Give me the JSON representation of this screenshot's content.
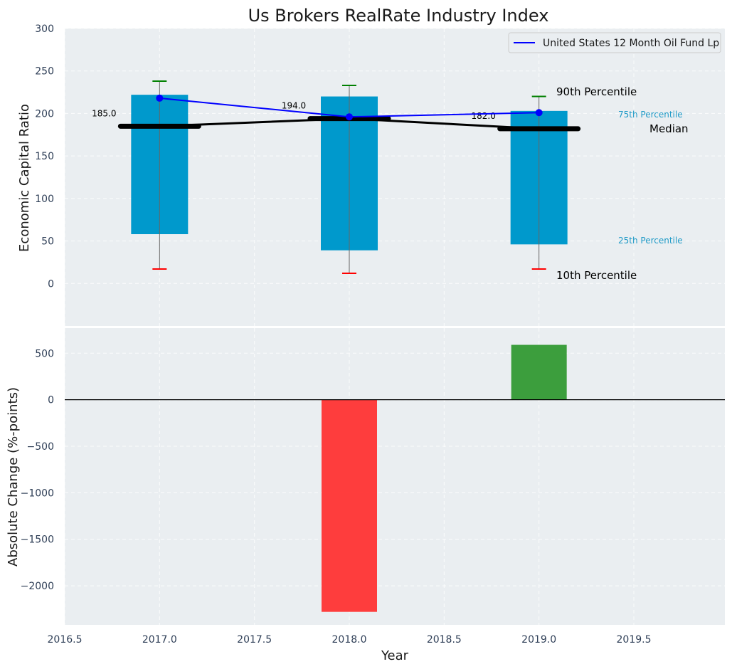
{
  "chart_data": [
    {
      "type": "bar",
      "title": "Us Brokers RealRate Industry Index",
      "ylabel": "Economic Capital Ratio",
      "ylim": [
        -50,
        300
      ],
      "yticks": [
        0,
        50,
        100,
        150,
        200,
        250,
        300
      ],
      "grid": true,
      "legend_position": "top-right",
      "years": [
        2017.0,
        2018.0,
        2019.0
      ],
      "percentile_10": [
        17,
        12,
        17
      ],
      "percentile_25": [
        58,
        39,
        46
      ],
      "percentile_75": [
        222,
        220,
        203
      ],
      "percentile_90": [
        238,
        233,
        220
      ],
      "median": [
        185,
        194,
        182
      ],
      "median_labels": [
        "185.0",
        "194.0",
        "182.0"
      ],
      "series": [
        {
          "name": "United States 12 Month Oil Fund Lp",
          "values": [
            218,
            196,
            201
          ],
          "color": "#0000ff"
        }
      ],
      "annotations": {
        "p90": "90th Percentile",
        "p75": "75th Percentile",
        "median": "Median",
        "p25": "25th Percentile",
        "p10": "10th Percentile"
      },
      "colors": {
        "box": "#0099cc",
        "p90_cap": "#008000",
        "p10_cap": "#ff0000",
        "median": "#000000",
        "annot_small": "#1f9ac7"
      }
    },
    {
      "type": "bar",
      "ylabel": "Absolute Change (%-points)",
      "xlabel": "Year",
      "ylim": [
        -2420,
        770
      ],
      "yticks": [
        500,
        0,
        -500,
        -1000,
        -1500,
        -2000
      ],
      "ytick_labels": [
        "500",
        "0",
        "−500",
        "−1000",
        "−1500",
        "−2000"
      ],
      "xlim": [
        2016.5,
        2019.98
      ],
      "xticks": [
        "2016.5",
        "2017.0",
        "2017.5",
        "2018.0",
        "2018.5",
        "2019.0",
        "2019.5"
      ],
      "x": [
        2018.0,
        2019.0
      ],
      "values": [
        -2280,
        590
      ],
      "colors": [
        "#ff3333",
        "#339933"
      ]
    }
  ]
}
